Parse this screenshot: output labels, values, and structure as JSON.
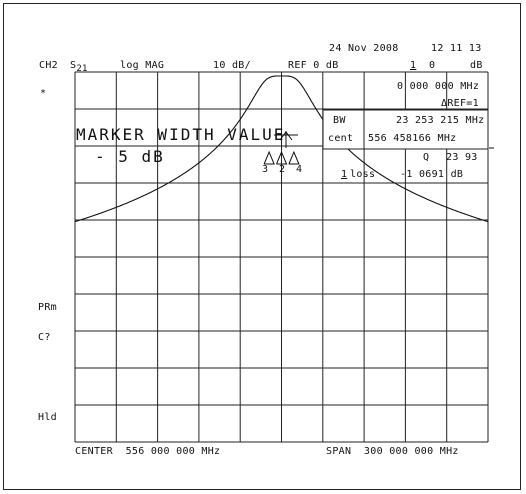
{
  "header": {
    "date": "24 Nov 2008",
    "time": "12 11 13",
    "channel": "CH2",
    "param": "S",
    "param_sub": "21",
    "format": "log MAG",
    "scale": "10 dB/",
    "ref": "REF 0 dB",
    "marker_active": "1",
    "marker_val": "0",
    "unit_db": "dB"
  },
  "marker_panel": {
    "freq": "0 000 000 MHz",
    "ref_label": "ΔREF=1",
    "bw_label": "BW",
    "bw_value": "23 253 215 MHz",
    "cent_label": "cent",
    "cent_value": "556 458166 MHz",
    "q_label": "Q",
    "q_value": "23 93",
    "loss_marker": "1",
    "loss_label": "loss",
    "loss_value": "-1 0691 dB"
  },
  "overlay": {
    "line1": "MARKER WIDTH VALUE",
    "line2": "- 5 dB"
  },
  "left_annotations": {
    "star": "*",
    "prm": "PRm",
    "c2": "C?",
    "hld": "Hld"
  },
  "markers": [
    "3",
    "2",
    "4"
  ],
  "footer": {
    "center": "CENTER  556 000 000 MHz",
    "span": "SPAN  300 000 000 MHz"
  },
  "trace": {
    "center_mhz": 556,
    "span_mhz": 300,
    "ref_db": 0,
    "db_per_div": 10,
    "divisions": 10,
    "bw_mhz": 23.25,
    "peak_db": -1.07
  }
}
